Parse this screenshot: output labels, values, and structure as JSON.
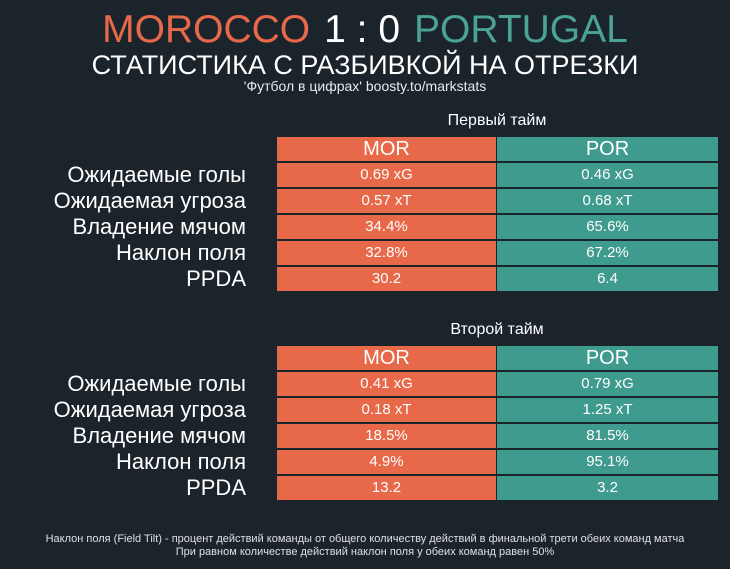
{
  "header": {
    "home_team": "MOROCCO",
    "score": "1 : 0",
    "away_team": "PORTUGAL",
    "subtitle": "СТАТИСТИКА С РАЗБИВКОЙ НА ОТРЕЗКИ",
    "source": "'Футбол в цифрах' boosty.to/markstats"
  },
  "colors": {
    "home": "#e8694a",
    "away": "#3f9b8d",
    "background": "#1b232b"
  },
  "columns": {
    "home": "MOR",
    "away": "POR"
  },
  "halves": [
    {
      "title": "Первый тайм",
      "rows": [
        {
          "label": "Ожидаемые голы",
          "home": "0.69 xG",
          "away": "0.46 xG"
        },
        {
          "label": "Ожидаемая угроза",
          "home": "0.57 xT",
          "away": "0.68 xT"
        },
        {
          "label": "Владение мячом",
          "home": "34.4%",
          "away": "65.6%"
        },
        {
          "label": "Наклон поля",
          "home": "32.8%",
          "away": "67.2%"
        },
        {
          "label": "PPDA",
          "home": "30.2",
          "away": "6.4"
        }
      ]
    },
    {
      "title": "Второй тайм",
      "rows": [
        {
          "label": "Ожидаемые голы",
          "home": "0.41 xG",
          "away": "0.79 xG"
        },
        {
          "label": "Ожидаемая угроза",
          "home": "0.18 xT",
          "away": "1.25 xT"
        },
        {
          "label": "Владение мячом",
          "home": "18.5%",
          "away": "81.5%"
        },
        {
          "label": "Наклон поля",
          "home": "4.9%",
          "away": "95.1%"
        },
        {
          "label": "PPDA",
          "home": "13.2",
          "away": "3.2"
        }
      ]
    }
  ],
  "footnote": {
    "line1": "Наклон поля (Field Tilt) - процент действий команды от общего количеству действий в финальной трети обеих команд матча",
    "line2": "При равном количестве действий наклон поля у обеих команд равен 50%"
  }
}
